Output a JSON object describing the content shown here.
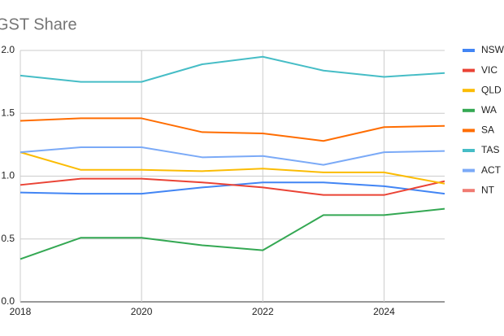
{
  "chart_data": {
    "type": "line",
    "title": "GST Share",
    "x": [
      2018,
      2019,
      2020,
      2021,
      2022,
      2023,
      2024,
      2025
    ],
    "xlim": [
      2018,
      2025
    ],
    "xticks": [
      2018,
      2020,
      2022,
      2024
    ],
    "ylim": [
      0,
      2
    ],
    "yticks": [
      {
        "value": 0,
        "label": "0.0"
      },
      {
        "value": 0.5,
        "label": "0.5"
      },
      {
        "value": 1,
        "label": "1.0"
      },
      {
        "value": 1.5,
        "label": "1.5"
      },
      {
        "value": 2,
        "label": "2.0"
      }
    ],
    "grid": true,
    "legend": "right",
    "series": [
      {
        "name": "NSW",
        "color": "#4285f4",
        "values": [
          0.87,
          0.86,
          0.86,
          0.91,
          0.95,
          0.95,
          0.92,
          0.86
        ]
      },
      {
        "name": "VIC",
        "color": "#ea4335",
        "values": [
          0.93,
          0.98,
          0.98,
          0.95,
          0.91,
          0.85,
          0.85,
          0.96
        ]
      },
      {
        "name": "QLD",
        "color": "#fbbc04",
        "values": [
          1.19,
          1.05,
          1.05,
          1.04,
          1.06,
          1.03,
          1.03,
          0.94
        ]
      },
      {
        "name": "WA",
        "color": "#34a853",
        "values": [
          0.34,
          0.51,
          0.51,
          0.45,
          0.41,
          0.69,
          0.69,
          0.74
        ]
      },
      {
        "name": "SA",
        "color": "#ff6d01",
        "values": [
          1.44,
          1.46,
          1.46,
          1.35,
          1.34,
          1.28,
          1.39,
          1.4
        ]
      },
      {
        "name": "TAS",
        "color": "#46bdc6",
        "values": [
          1.8,
          1.75,
          1.75,
          1.89,
          1.95,
          1.84,
          1.79,
          1.82
        ]
      },
      {
        "name": "ACT",
        "color": "#7baaf7",
        "values": [
          1.19,
          1.23,
          1.23,
          1.15,
          1.16,
          1.09,
          1.19,
          1.2
        ]
      },
      {
        "name": "NT",
        "color": "#f07b72",
        "values": [
          null,
          null,
          null,
          null,
          null,
          null,
          null,
          null
        ]
      }
    ]
  }
}
